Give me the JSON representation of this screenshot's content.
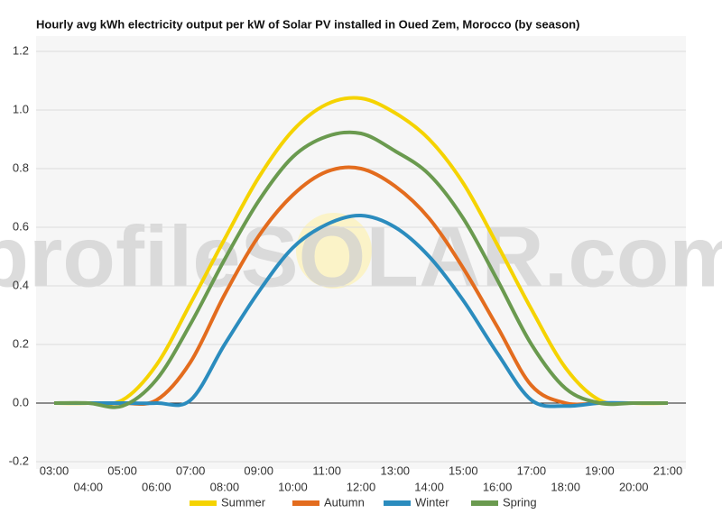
{
  "chart_data": {
    "type": "line",
    "title": "Hourly avg kWh electricity output per kW of Solar PV installed in Oued Zem, Morocco (by season)",
    "watermark": "profileSOLAR.com",
    "categories": [
      "03:00",
      "04:00",
      "05:00",
      "06:00",
      "07:00",
      "08:00",
      "09:00",
      "10:00",
      "11:00",
      "12:00",
      "13:00",
      "14:00",
      "15:00",
      "16:00",
      "17:00",
      "18:00",
      "19:00",
      "20:00",
      "21:00"
    ],
    "ylim": [
      -0.2,
      1.2
    ],
    "yticks": [
      {
        "value": -0.2,
        "label": "-0.2"
      },
      {
        "value": 0,
        "label": "0.0"
      },
      {
        "value": 0.2,
        "label": "0.2"
      },
      {
        "value": 0.4,
        "label": "0.4"
      },
      {
        "value": 0.6,
        "label": "0.6"
      },
      {
        "value": 0.8,
        "label": "0.8"
      },
      {
        "value": 1,
        "label": "1.0"
      },
      {
        "value": 1.2,
        "label": "1.2"
      }
    ],
    "grid": true,
    "legend": "bottom",
    "series": [
      {
        "name": "Summer",
        "color": "#f5d300",
        "values": [
          0,
          0,
          0.01,
          0.13,
          0.34,
          0.56,
          0.77,
          0.93,
          1.02,
          1.04,
          0.99,
          0.9,
          0.75,
          0.54,
          0.32,
          0.12,
          0.01,
          0,
          0
        ]
      },
      {
        "name": "Autumn",
        "color": "#e36c1e",
        "values": [
          0,
          0,
          0,
          0.01,
          0.14,
          0.37,
          0.57,
          0.71,
          0.79,
          0.8,
          0.74,
          0.63,
          0.46,
          0.26,
          0.06,
          0,
          0,
          0,
          0
        ]
      },
      {
        "name": "Winter",
        "color": "#2b8cbe",
        "values": [
          0,
          0,
          0,
          0,
          0.01,
          0.2,
          0.38,
          0.53,
          0.61,
          0.64,
          0.6,
          0.5,
          0.35,
          0.17,
          0.01,
          -0.01,
          0,
          0,
          0
        ]
      },
      {
        "name": "Spring",
        "color": "#6a9a4f",
        "values": [
          0,
          0,
          -0.01,
          0.08,
          0.27,
          0.49,
          0.69,
          0.84,
          0.91,
          0.92,
          0.86,
          0.78,
          0.63,
          0.42,
          0.2,
          0.05,
          0,
          0,
          0
        ]
      }
    ]
  }
}
